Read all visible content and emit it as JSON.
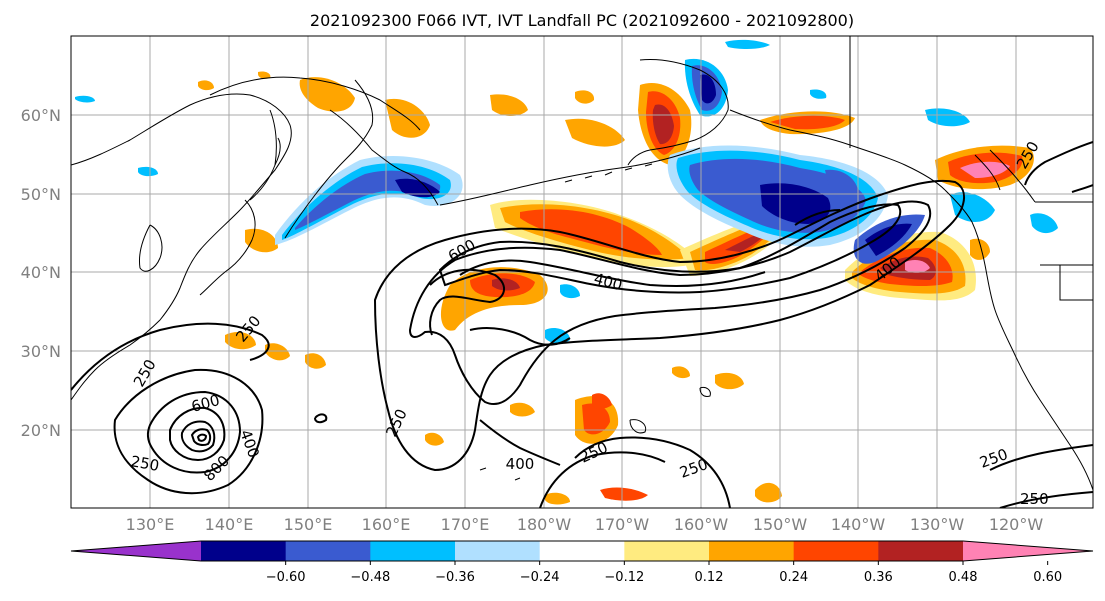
{
  "title": "2021092300 F066 IVT, IVT Landfall PC (2021092600 - 2021092800)",
  "lat_labels": [
    "60°N",
    "50°N",
    "40°N",
    "30°N",
    "20°N"
  ],
  "lon_labels": [
    "130°E",
    "140°E",
    "150°E",
    "160°E",
    "170°E",
    "180°W",
    "170°W",
    "160°W",
    "150°W",
    "140°W",
    "130°W",
    "120°W"
  ],
  "colorbar": {
    "colors": [
      "#9932cc",
      "#00008b",
      "#3a5bd0",
      "#00bfff",
      "#b0e0ff",
      "#ffffff",
      "#ffeb80",
      "#ffa500",
      "#ff4500",
      "#b22222",
      "#ff82b4"
    ],
    "ticks": [
      "−0.60",
      "−0.48",
      "−0.36",
      "−0.24",
      "−0.12",
      "0.12",
      "0.24",
      "0.36",
      "0.48",
      "0.60"
    ]
  },
  "contour_labels": [
    {
      "text": "600"
    },
    {
      "text": "400"
    },
    {
      "text": "250"
    },
    {
      "text": "400"
    },
    {
      "text": "250"
    },
    {
      "text": "250"
    },
    {
      "text": "600"
    },
    {
      "text": "400"
    },
    {
      "text": "800"
    },
    {
      "text": "250"
    },
    {
      "text": "250"
    },
    {
      "text": "400"
    },
    {
      "text": "250"
    },
    {
      "text": "250"
    },
    {
      "text": "250"
    },
    {
      "text": "250"
    }
  ]
}
